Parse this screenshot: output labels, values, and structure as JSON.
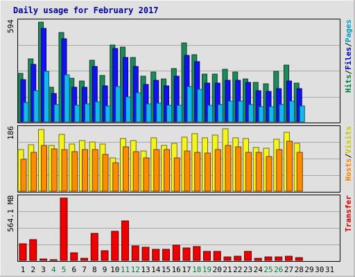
{
  "chart_data": {
    "title": "Daily usage for February 2017",
    "type": "bar",
    "days": [
      "1",
      "2",
      "3",
      "4",
      "5",
      "6",
      "7",
      "8",
      "9",
      "10",
      "11",
      "12",
      "13",
      "14",
      "15",
      "16",
      "17",
      "18",
      "19",
      "20",
      "21",
      "22",
      "23",
      "24",
      "25",
      "26",
      "27",
      "28",
      "29",
      "30",
      "31"
    ],
    "weekend_days": [
      "4",
      "5",
      "11",
      "12",
      "18",
      "19",
      "25",
      "26"
    ],
    "panels": {
      "hits": {
        "ymax_label": "594",
        "ymax": 594,
        "axis_label_parts": [
          {
            "text": "Hits",
            "color": "#008040"
          },
          {
            "text": "/",
            "color": "#000000"
          },
          {
            "text": "Files",
            "color": "#0000c0"
          },
          {
            "text": "/",
            "color": "#000000"
          },
          {
            "text": "Pages",
            "color": "#00a0c0"
          }
        ],
        "series": [
          {
            "name": "Hits",
            "color": "#1e8a5a",
            "values": [
              287,
              376,
              594,
              206,
              533,
              258,
              244,
              368,
              278,
              457,
              447,
              385,
              273,
              296,
              255,
              318,
              469,
              401,
              283,
              283,
              315,
              297,
              257,
              235,
              226,
              300,
              339,
              229,
              0,
              0,
              0
            ]
          },
          {
            "name": "Files",
            "color": "#1212ee",
            "values": [
              252,
              341,
              557,
              169,
              497,
              206,
              208,
              331,
              215,
              439,
              385,
              330,
              223,
              249,
              214,
              271,
              398,
              357,
              231,
              231,
              249,
              248,
              236,
              185,
              181,
              196,
              244,
              197,
              0,
              0,
              0
            ]
          },
          {
            "name": "Pages",
            "color": "#12b8ee",
            "values": [
              115,
              185,
              300,
              104,
              280,
              99,
              107,
              121,
              95,
              209,
              150,
              174,
              108,
              112,
              97,
              98,
              210,
              192,
              98,
              102,
              125,
              123,
              102,
              90,
              90,
              105,
              125,
              94,
              0,
              0,
              0
            ]
          }
        ]
      },
      "visits": {
        "ymax_label": "186",
        "ymax": 186,
        "axis_label_parts": [
          {
            "text": "Hosts",
            "color": "#ff8000"
          },
          {
            "text": "/",
            "color": "#000000"
          },
          {
            "text": "Visits",
            "color": "#c8c800"
          }
        ],
        "series": [
          {
            "name": "Visits",
            "color": "#f4f420",
            "values": [
              124,
              139,
              184,
              136,
              170,
              140,
              151,
              146,
              140,
              100,
              158,
              150,
              120,
              160,
              137,
              142,
              162,
              171,
              160,
              168,
              186,
              159,
              158,
              130,
              128,
              156,
              175,
              142,
              0,
              0,
              0
            ]
          },
          {
            "name": "Hosts",
            "color": "#ff8c00",
            "values": [
              95,
              116,
              136,
              126,
              123,
              117,
              125,
              124,
              110,
              84,
              132,
              117,
              100,
              124,
              123,
              99,
              119,
              116,
              114,
              123,
              137,
              133,
              115,
              116,
              103,
              123,
              149,
              115,
              0,
              0,
              0
            ]
          }
        ]
      },
      "transfer": {
        "ymax_label": "564.1 MB",
        "ymax": 564.1,
        "axis_label_parts": [
          {
            "text": "Transfer",
            "color": "#e00000"
          }
        ],
        "series": [
          {
            "name": "Transfer",
            "color": "#ee0000",
            "values": [
              148,
              188,
              10,
              8,
              564,
              68,
              18,
              242,
              90,
              262,
              358,
              130,
              118,
              100,
              102,
              138,
              114,
              128,
              80,
              82,
              30,
              40,
              80,
              20,
              30,
              30,
              38,
              22,
              0,
              0,
              0
            ]
          }
        ]
      }
    }
  }
}
